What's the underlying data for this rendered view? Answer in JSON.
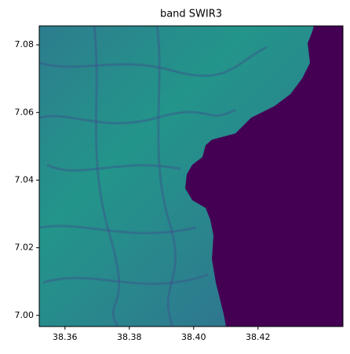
{
  "chart_data": {
    "type": "image",
    "title": "band SWIR3",
    "xlim": [
      38.352,
      38.4464
    ],
    "xticks": [
      38.36,
      38.38,
      {
        "value": 38.4,
        "label": "38.40"
      },
      38.42
    ],
    "ylim": [
      6.9967,
      7.0856
    ],
    "yticks": [
      {
        "value": 7,
        "label": "7.00"
      },
      7.02,
      7.04,
      7.06,
      7.08
    ]
  }
}
